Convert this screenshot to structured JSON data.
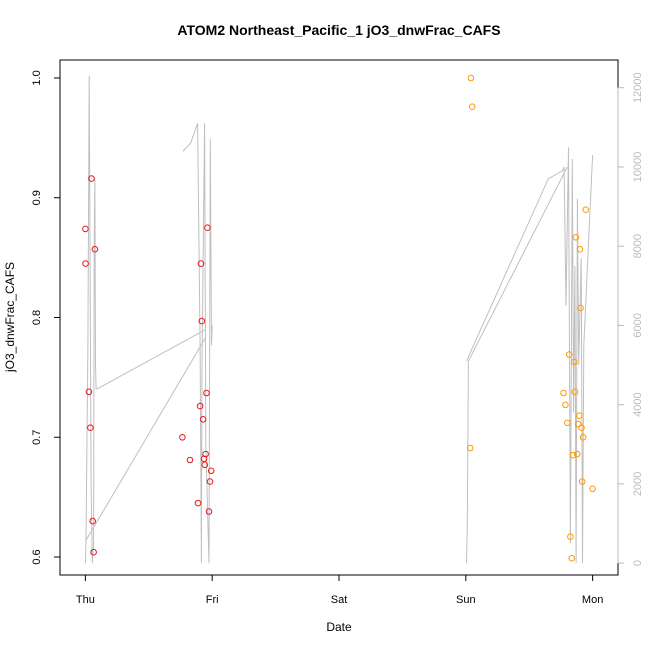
{
  "chart_data": {
    "type": "scatter",
    "title": "ATOM2 Northeast_Pacific_1 jO3_dnwFrac_CAFS",
    "xlabel": "Date",
    "ylabel": "jO3_dnwFrac_CAFS",
    "x_ticks": [
      "Thu",
      "Fri",
      "Sat",
      "Sun",
      "Mon"
    ],
    "xlim_days": [
      -0.2,
      4.2
    ],
    "ylim": [
      0.585,
      1.015
    ],
    "y_ticks": [
      0.6,
      0.7,
      0.8,
      0.9,
      1.0
    ],
    "y_tick_labels": [
      "0.6",
      "0.7",
      "0.8",
      "0.9",
      "1.0"
    ],
    "y2_ticks": [
      0,
      2000,
      4000,
      6000,
      8000,
      10000,
      12000
    ],
    "y2_tick_labels": [
      "0",
      "2000",
      "4000",
      "6000",
      "8000",
      "10000",
      "12000"
    ],
    "y2lim": [
      -300,
      12700
    ],
    "grid": false,
    "colors": {
      "red_points": "#e41a1c",
      "orange_points": "#ff9900",
      "altitude_line": "#bfbfbf",
      "right_axis": "#bbbbbb"
    },
    "series": [
      {
        "color": "#e41a1c",
        "points": [
          [
            0.0,
            0.874
          ],
          [
            0.002,
            0.845
          ],
          [
            0.028,
            0.738
          ],
          [
            0.04,
            0.708
          ],
          [
            0.048,
            0.916
          ],
          [
            0.058,
            0.63
          ],
          [
            0.065,
            0.604
          ],
          [
            0.075,
            0.857
          ],
          [
            0.765,
            0.7
          ],
          [
            0.825,
            0.681
          ],
          [
            0.888,
            0.645
          ],
          [
            0.905,
            0.726
          ],
          [
            0.912,
            0.845
          ],
          [
            0.918,
            0.797
          ],
          [
            0.928,
            0.715
          ],
          [
            0.936,
            0.682
          ],
          [
            0.942,
            0.677
          ],
          [
            0.948,
            0.686
          ],
          [
            0.955,
            0.737
          ],
          [
            0.962,
            0.875
          ],
          [
            0.975,
            0.638
          ],
          [
            0.983,
            0.663
          ],
          [
            0.992,
            0.672
          ]
        ]
      },
      {
        "color": "#ff9900",
        "points": [
          [
            3.035,
            0.691
          ],
          [
            3.04,
            1.0
          ],
          [
            3.05,
            0.976
          ],
          [
            3.77,
            0.737
          ],
          [
            3.785,
            0.727
          ],
          [
            3.8,
            0.712
          ],
          [
            3.815,
            0.769
          ],
          [
            3.825,
            0.617
          ],
          [
            3.835,
            0.599
          ],
          [
            3.845,
            0.685
          ],
          [
            3.855,
            0.763
          ],
          [
            3.86,
            0.738
          ],
          [
            3.868,
            0.867
          ],
          [
            3.878,
            0.686
          ],
          [
            3.885,
            0.711
          ],
          [
            3.895,
            0.718
          ],
          [
            3.9,
            0.857
          ],
          [
            3.905,
            0.808
          ],
          [
            3.912,
            0.708
          ],
          [
            3.918,
            0.663
          ],
          [
            3.925,
            0.7
          ],
          [
            3.945,
            0.89
          ],
          [
            4.0,
            0.657
          ]
        ]
      }
    ],
    "altitude_segments": [
      [
        [
          0.0,
          0
        ],
        [
          0.005,
          600
        ],
        [
          0.02,
          5500
        ],
        [
          0.03,
          12300
        ],
        [
          0.038,
          7000
        ],
        [
          0.045,
          2000
        ],
        [
          0.055,
          0
        ],
        [
          0.065,
          500
        ],
        [
          0.07,
          8000
        ],
        [
          0.075,
          9700
        ],
        [
          0.08,
          5000
        ],
        [
          0.085,
          4400
        ],
        [
          0.095,
          4400
        ],
        [
          0.95,
          5900
        ]
      ],
      [
        [
          0.0,
          550
        ],
        [
          0.95,
          5700
        ]
      ],
      [
        [
          0.77,
          10400
        ],
        [
          0.83,
          10600
        ],
        [
          0.885,
          11100
        ],
        [
          0.905,
          5500
        ],
        [
          0.915,
          0
        ],
        [
          0.92,
          5000
        ],
        [
          0.94,
          11100
        ],
        [
          0.95,
          3000
        ],
        [
          0.975,
          0
        ],
        [
          0.985,
          10700
        ],
        [
          0.995,
          5500
        ],
        [
          1.0,
          6000
        ]
      ],
      [
        [
          3.005,
          0
        ],
        [
          3.012,
          1000
        ],
        [
          3.02,
          5100
        ],
        [
          3.8,
          10000
        ]
      ],
      [
        [
          3.005,
          5100
        ],
        [
          3.65,
          9700
        ],
        [
          3.76,
          9900
        ],
        [
          3.775,
          10000
        ],
        [
          3.79,
          6500
        ],
        [
          3.81,
          10500
        ],
        [
          3.825,
          500
        ],
        [
          3.84,
          10200
        ],
        [
          3.85,
          3800
        ],
        [
          3.86,
          7500
        ],
        [
          3.87,
          0
        ],
        [
          3.88,
          9200
        ],
        [
          3.89,
          5000
        ],
        [
          3.91,
          7700
        ],
        [
          3.92,
          0
        ],
        [
          3.93,
          5500
        ],
        [
          4.0,
          10300
        ]
      ]
    ]
  }
}
